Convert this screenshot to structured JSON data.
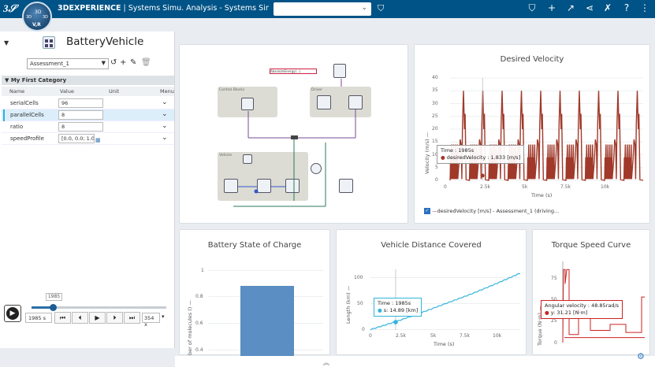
{
  "topbar": {
    "brand": "3DEXPERIENCE",
    "separator": " | ",
    "app_name": "Systems Simu. Analysis - Systems Simulation ...",
    "search_value": "",
    "compass_version": "V,R",
    "compass_3d": "3D",
    "icons": [
      "tag-icon",
      "bookmark-icon",
      "plus-icon",
      "share-arrow-icon",
      "share-network-icon",
      "tools-icon",
      "help-icon",
      "more-icon"
    ]
  },
  "model": {
    "title": "BatteryVehicle",
    "assessment": "Assessment_1",
    "category": "My First Category",
    "columns": {
      "name": "Name",
      "value": "Value",
      "unit": "Unit",
      "menu": "Menu"
    },
    "params": [
      {
        "name": "serialCells",
        "value": "96"
      },
      {
        "name": "parallelCells",
        "value": "8"
      },
      {
        "name": "ratio",
        "value": "8"
      },
      {
        "name": "speedProfile",
        "value": "[0.0, 0.0; 1.0, ..."
      }
    ]
  },
  "playback": {
    "tooltip_time": "1985",
    "time": "1985 s",
    "speed": "354 x",
    "progress": 0.16
  },
  "diagram": {
    "labels": {
      "control_blocks": "Control Blocks",
      "driver": "Driver",
      "vehicle": "Vehicle",
      "energy": "AbsoluteEnergy(...)"
    }
  },
  "charts": {
    "velocity": {
      "title": "Desired Velocity",
      "ylabel": "Velocity (m/s) —",
      "xlabel": "Time (s)",
      "yticks": [
        "40",
        "35",
        "30",
        "25",
        "20",
        "15",
        "10",
        "5",
        "0"
      ],
      "xticks": [
        "0",
        "2.5k",
        "5k",
        "7.5k",
        "10k"
      ],
      "tooltip_time": "Time : 1985s",
      "tooltip_value": "desiredVelocity : 1.833 [m/s]",
      "legend": "desiredVelocity [m/s] - Assessment_1 (driving..."
    },
    "soc": {
      "title": "Battery State of Charge",
      "ylabel": "ber of molecules () —",
      "yticks": [
        "1",
        "0.8",
        "0.6",
        "0.4"
      ]
    },
    "distance": {
      "title": "Vehicle Distance Covered",
      "ylabel": "Length (km) —",
      "xlabel": "Time (s)",
      "yticks": [
        "100",
        "50",
        "0"
      ],
      "xticks": [
        "0",
        "2.5k",
        "5k",
        "7.5k",
        "10k"
      ],
      "tooltip_time": "Time : 1985s",
      "tooltip_value": "s: 14.89 [km]"
    },
    "torque": {
      "title": "Torque Speed Curve",
      "ylabel": "Torque (N·m) —",
      "yticks": [
        "75",
        "50",
        "25",
        "0"
      ],
      "tooltip_time": "Angular velocity : 48.85rad/s",
      "tooltip_value": "y: 31.21 [N·m]"
    }
  },
  "chart_data": [
    {
      "type": "line",
      "title": "Desired Velocity",
      "xlabel": "Time (s)",
      "ylabel": "Velocity (m/s)",
      "xlim": [
        0,
        11800
      ],
      "ylim": [
        0,
        40
      ],
      "series": [
        {
          "name": "desiredVelocity [m/s] - Assessment_1 (driving...",
          "color": "#a0392a"
        }
      ],
      "annotation": {
        "x": 1985,
        "y": 1.833
      }
    },
    {
      "type": "bar",
      "title": "Battery State of Charge",
      "categories": [
        ""
      ],
      "values": [
        0.88
      ],
      "ylim": [
        0.4,
        1.05
      ],
      "color": "#5b8ec2"
    },
    {
      "type": "line",
      "title": "Vehicle Distance Covered",
      "xlabel": "Time (s)",
      "ylabel": "Length (km)",
      "x": [
        0,
        1985,
        4000,
        6000,
        8000,
        10000,
        11800
      ],
      "y": [
        0,
        14.89,
        32,
        50,
        68,
        88,
        107
      ],
      "xlim": [
        0,
        11800
      ],
      "ylim": [
        0,
        115
      ],
      "color": "#32b4d9"
    },
    {
      "type": "line",
      "title": "Torque Speed Curve",
      "ylabel": "Torque (N·m)",
      "ylim": [
        0,
        80
      ],
      "annotation": {
        "x": 48.85,
        "y": 31.21
      },
      "color": "#cc2222"
    }
  ]
}
